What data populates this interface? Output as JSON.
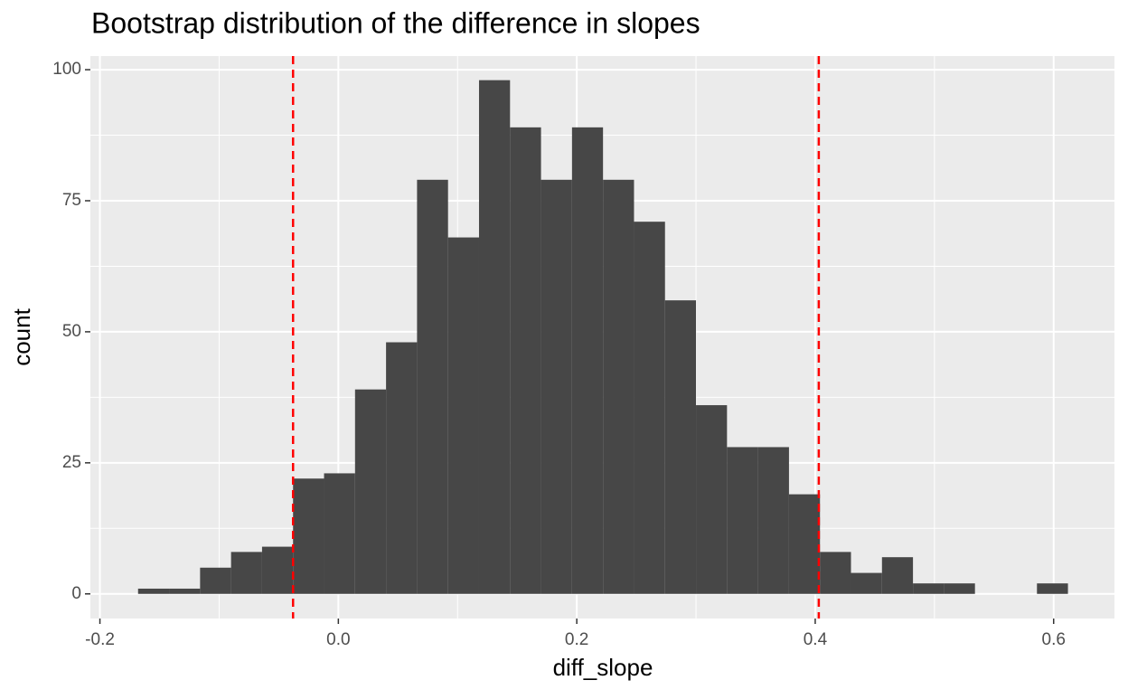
{
  "chart_data": {
    "type": "histogram",
    "title": "Bootstrap distribution of the difference in slopes",
    "x_label": "diff_slope",
    "y_label": "count",
    "bins": [
      -0.168,
      -0.142,
      -0.116,
      -0.09,
      -0.064,
      -0.038,
      -0.012,
      0.014,
      0.04,
      0.066,
      0.092,
      0.118,
      0.144,
      0.17,
      0.196,
      0.222,
      0.248,
      0.274,
      0.3,
      0.326,
      0.352,
      0.378,
      0.404,
      0.43,
      0.456,
      0.482,
      0.508,
      0.534,
      0.56,
      0.586,
      0.612
    ],
    "values": [
      1,
      1,
      5,
      8,
      9,
      22,
      23,
      39,
      48,
      79,
      68,
      98,
      89,
      79,
      89,
      79,
      71,
      56,
      36,
      28,
      28,
      19,
      8,
      4,
      7,
      2,
      2,
      0,
      0,
      2
    ],
    "color": "#474747",
    "vlines": [
      -0.038,
      0.403
    ],
    "vline_color": "#ff0000",
    "xlim": [
      -0.208,
      0.651
    ],
    "ylim": [
      -4.7,
      102.6
    ],
    "xticks": [
      -0.2,
      {
        "value": 0,
        "label": "0.0"
      },
      0.2,
      0.4,
      0.6
    ],
    "yticks": [
      0,
      25,
      50,
      75,
      100
    ],
    "grid": true
  }
}
